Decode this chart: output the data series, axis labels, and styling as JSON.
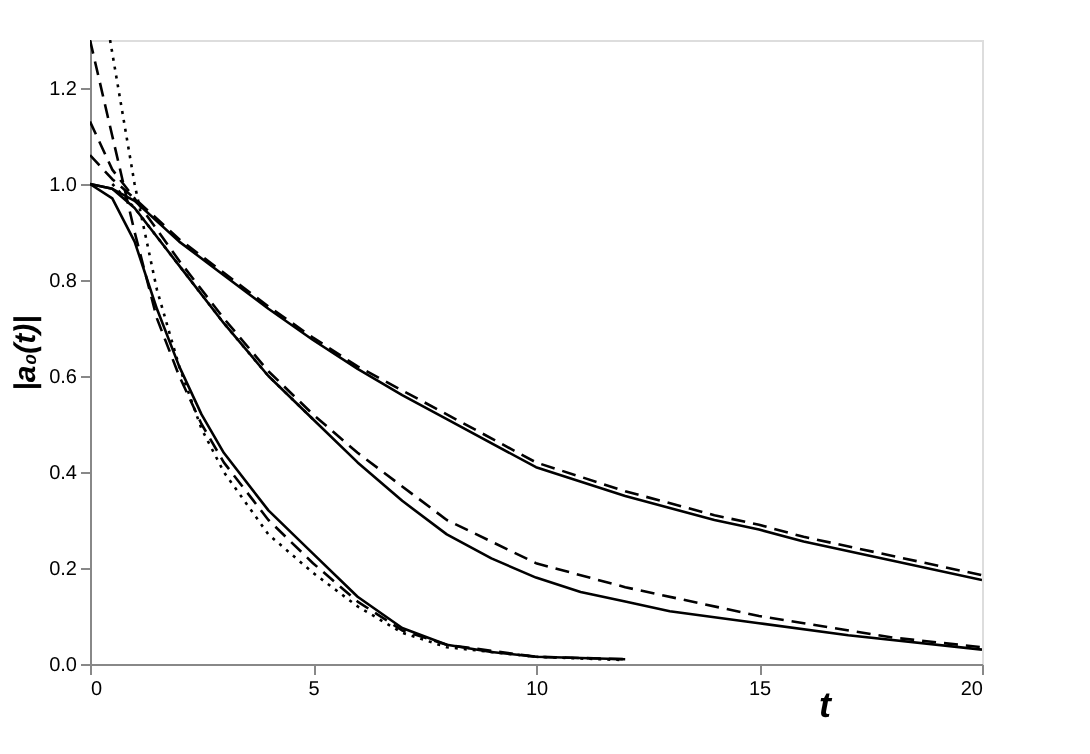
{
  "chart_data": {
    "type": "line",
    "xlabel": "t",
    "ylabel": "|a₀(t)|",
    "xlim": [
      0,
      20
    ],
    "ylim": [
      0,
      1.3
    ],
    "xticks": [
      0,
      5,
      10,
      15,
      20
    ],
    "yticks": [
      {
        "value": 0,
        "label": "0.0"
      },
      0.2,
      0.4,
      0.6,
      0.8,
      {
        "value": 1,
        "label": "1.0"
      },
      1.2
    ],
    "grid": false,
    "marker": "none",
    "series": [
      {
        "color": "#000000",
        "line_style": "solid",
        "x": [
          0,
          0.5,
          1,
          2,
          3,
          4,
          5,
          6,
          7,
          8,
          10,
          12,
          14,
          15,
          16,
          18,
          20
        ],
        "values": [
          1.0,
          0.99,
          0.965,
          0.88,
          0.81,
          0.74,
          0.675,
          0.615,
          0.56,
          0.51,
          0.41,
          0.35,
          0.3,
          0.28,
          0.255,
          0.215,
          0.175
        ]
      },
      {
        "color": "#000000",
        "line_style": "dashed",
        "x": [
          0,
          0.5,
          1,
          2,
          3,
          4,
          5,
          6,
          7,
          8,
          10,
          12,
          14,
          15,
          16,
          18,
          20
        ],
        "values": [
          1.06,
          1.01,
          0.97,
          0.885,
          0.815,
          0.745,
          0.68,
          0.62,
          0.57,
          0.52,
          0.42,
          0.36,
          0.31,
          0.29,
          0.265,
          0.225,
          0.185
        ]
      },
      {
        "color": "#000000",
        "line_style": "solid",
        "x": [
          0,
          0.5,
          1,
          2,
          3,
          4,
          5,
          6,
          7,
          8,
          9,
          10,
          11,
          12,
          13,
          15,
          17,
          20
        ],
        "values": [
          1.0,
          0.99,
          0.95,
          0.83,
          0.71,
          0.6,
          0.51,
          0.42,
          0.34,
          0.27,
          0.22,
          0.18,
          0.15,
          0.13,
          0.11,
          0.085,
          0.06,
          0.03
        ]
      },
      {
        "color": "#000000",
        "line_style": "dashed",
        "x": [
          0,
          0.5,
          1,
          2,
          3,
          4,
          5,
          6,
          8,
          10,
          12,
          15,
          18,
          20
        ],
        "values": [
          1.13,
          1.03,
          0.97,
          0.84,
          0.72,
          0.61,
          0.52,
          0.44,
          0.3,
          0.21,
          0.16,
          0.1,
          0.055,
          0.035
        ]
      },
      {
        "color": "#000000",
        "line_style": "dotted",
        "x": [
          0.5,
          1,
          2,
          3,
          4,
          5
        ],
        "values": [
          1.0,
          0.95,
          0.83,
          0.71,
          0.6,
          0.51
        ]
      },
      {
        "color": "#000000",
        "line_style": "solid",
        "x": [
          0,
          0.5,
          1,
          1.5,
          2,
          2.5,
          3,
          4,
          5,
          6,
          7,
          8,
          9,
          10,
          12
        ],
        "values": [
          1.0,
          0.97,
          0.88,
          0.74,
          0.62,
          0.52,
          0.44,
          0.32,
          0.23,
          0.14,
          0.075,
          0.04,
          0.025,
          0.015,
          0.01
        ]
      },
      {
        "color": "#000000",
        "line_style": "dashed",
        "x": [
          0,
          0.5,
          1,
          1.5,
          2,
          2.5,
          3,
          4,
          5,
          6,
          7,
          8,
          10,
          12
        ],
        "values": [
          1.3,
          1.1,
          0.9,
          0.72,
          0.6,
          0.5,
          0.42,
          0.3,
          0.21,
          0.13,
          0.07,
          0.04,
          0.015,
          0.01
        ]
      },
      {
        "color": "#000000",
        "line_style": "dotted",
        "x": [
          0.45,
          1,
          1.5,
          2,
          2.5,
          3,
          4,
          5,
          6,
          7,
          8,
          10,
          12
        ],
        "values": [
          1.3,
          1.0,
          0.78,
          0.62,
          0.49,
          0.4,
          0.27,
          0.19,
          0.12,
          0.065,
          0.035,
          0.015,
          0.008
        ]
      }
    ]
  }
}
